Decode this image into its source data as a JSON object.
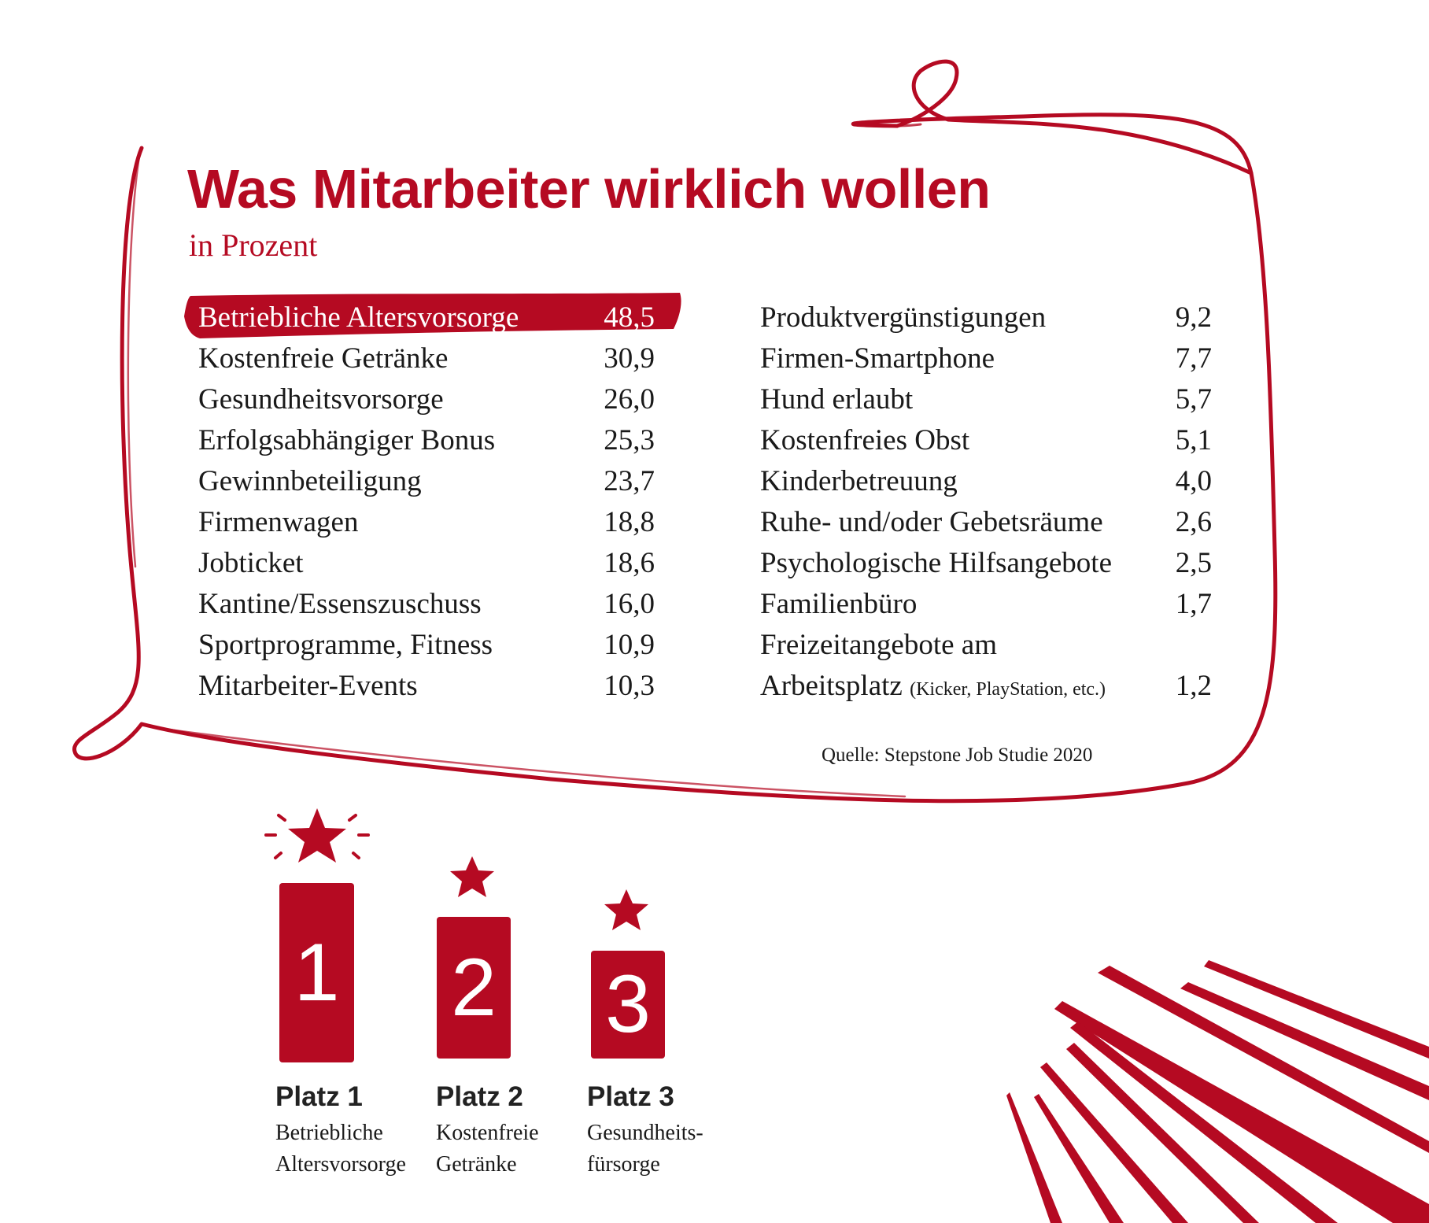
{
  "title": "Was Mitarbeiter wirklich wollen",
  "subtitle": "in Prozent",
  "colors": {
    "accent": "#b50a22",
    "text": "#1a1a1a"
  },
  "left_items": [
    {
      "label": "Betriebliche Altersvorsorge",
      "value": "48,5"
    },
    {
      "label": "Kostenfreie Getränke",
      "value": "30,9"
    },
    {
      "label": "Gesundheitsvorsorge",
      "value": "26,0"
    },
    {
      "label": "Erfolgsabhängiger Bonus",
      "value": "25,3"
    },
    {
      "label": "Gewinnbeteiligung",
      "value": "23,7"
    },
    {
      "label": "Firmenwagen",
      "value": "18,8"
    },
    {
      "label": "Jobticket",
      "value": "18,6"
    },
    {
      "label": "Kantine/Essenszuschuss",
      "value": "16,0"
    },
    {
      "label": "Sportprogramme, Fitness",
      "value": "10,9"
    },
    {
      "label": "Mitarbeiter-Events",
      "value": "10,3"
    }
  ],
  "right_items": [
    {
      "label": "Produktvergünstigungen",
      "value": "9,2"
    },
    {
      "label": "Firmen-Smartphone",
      "value": "7,7"
    },
    {
      "label": "Hund erlaubt",
      "value": "5,7"
    },
    {
      "label": "Kostenfreies Obst",
      "value": "5,1"
    },
    {
      "label": "Kinderbetreuung",
      "value": "4,0"
    },
    {
      "label": "Ruhe- und/oder Gebetsräume",
      "value": "2,6"
    },
    {
      "label": "Psychologische Hilfsangebote",
      "value": "2,5"
    },
    {
      "label": "Familienbüro",
      "value": "1,7"
    },
    {
      "label": "Freizeitangebote am",
      "value": ""
    },
    {
      "label": "Arbeitsplatz",
      "note": "(Kicker, PlayStation, etc.)",
      "value": "1,2"
    }
  ],
  "source": "Quelle: Stepstone Job Studie 2020",
  "podium": [
    {
      "number": "1",
      "place": "Platz 1",
      "line1": "Betriebliche",
      "line2": "Altersvorsorge"
    },
    {
      "number": "2",
      "place": "Platz 2",
      "line1": "Kostenfreie",
      "line2": "Getränke"
    },
    {
      "number": "3",
      "place": "Platz 3",
      "line1": "Gesundheits-",
      "line2": "fürsorge"
    }
  ],
  "icons": [
    "star-icon",
    "star-icon",
    "star-icon",
    "sparkle-icon"
  ]
}
